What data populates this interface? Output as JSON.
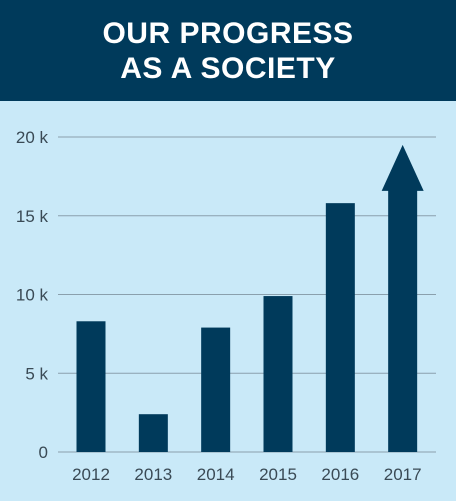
{
  "header": {
    "title_line1": "OUR PROGRESS",
    "title_line2": "AS A SOCIETY"
  },
  "colors": {
    "background": "#c9e9f8",
    "header": "#003a5b",
    "bar": "#003a5b",
    "grid": "#8aa0ad"
  },
  "chart_data": {
    "type": "bar",
    "title": "OUR PROGRESS AS A SOCIETY",
    "categories": [
      "2012",
      "2013",
      "2014",
      "2015",
      "2016",
      "2017"
    ],
    "values": [
      8300,
      2400,
      7900,
      9900,
      15800,
      19500
    ],
    "last_bar_style": "arrow",
    "ylim": [
      0,
      20000
    ],
    "yticks": [
      {
        "value": 0,
        "label": "0"
      },
      {
        "value": 5000,
        "label": "5 k"
      },
      {
        "value": 10000,
        "label": "10 k"
      },
      {
        "value": 15000,
        "label": "15 k"
      },
      {
        "value": 20000,
        "label": "20 k"
      }
    ],
    "grid": true,
    "legend": "none"
  }
}
